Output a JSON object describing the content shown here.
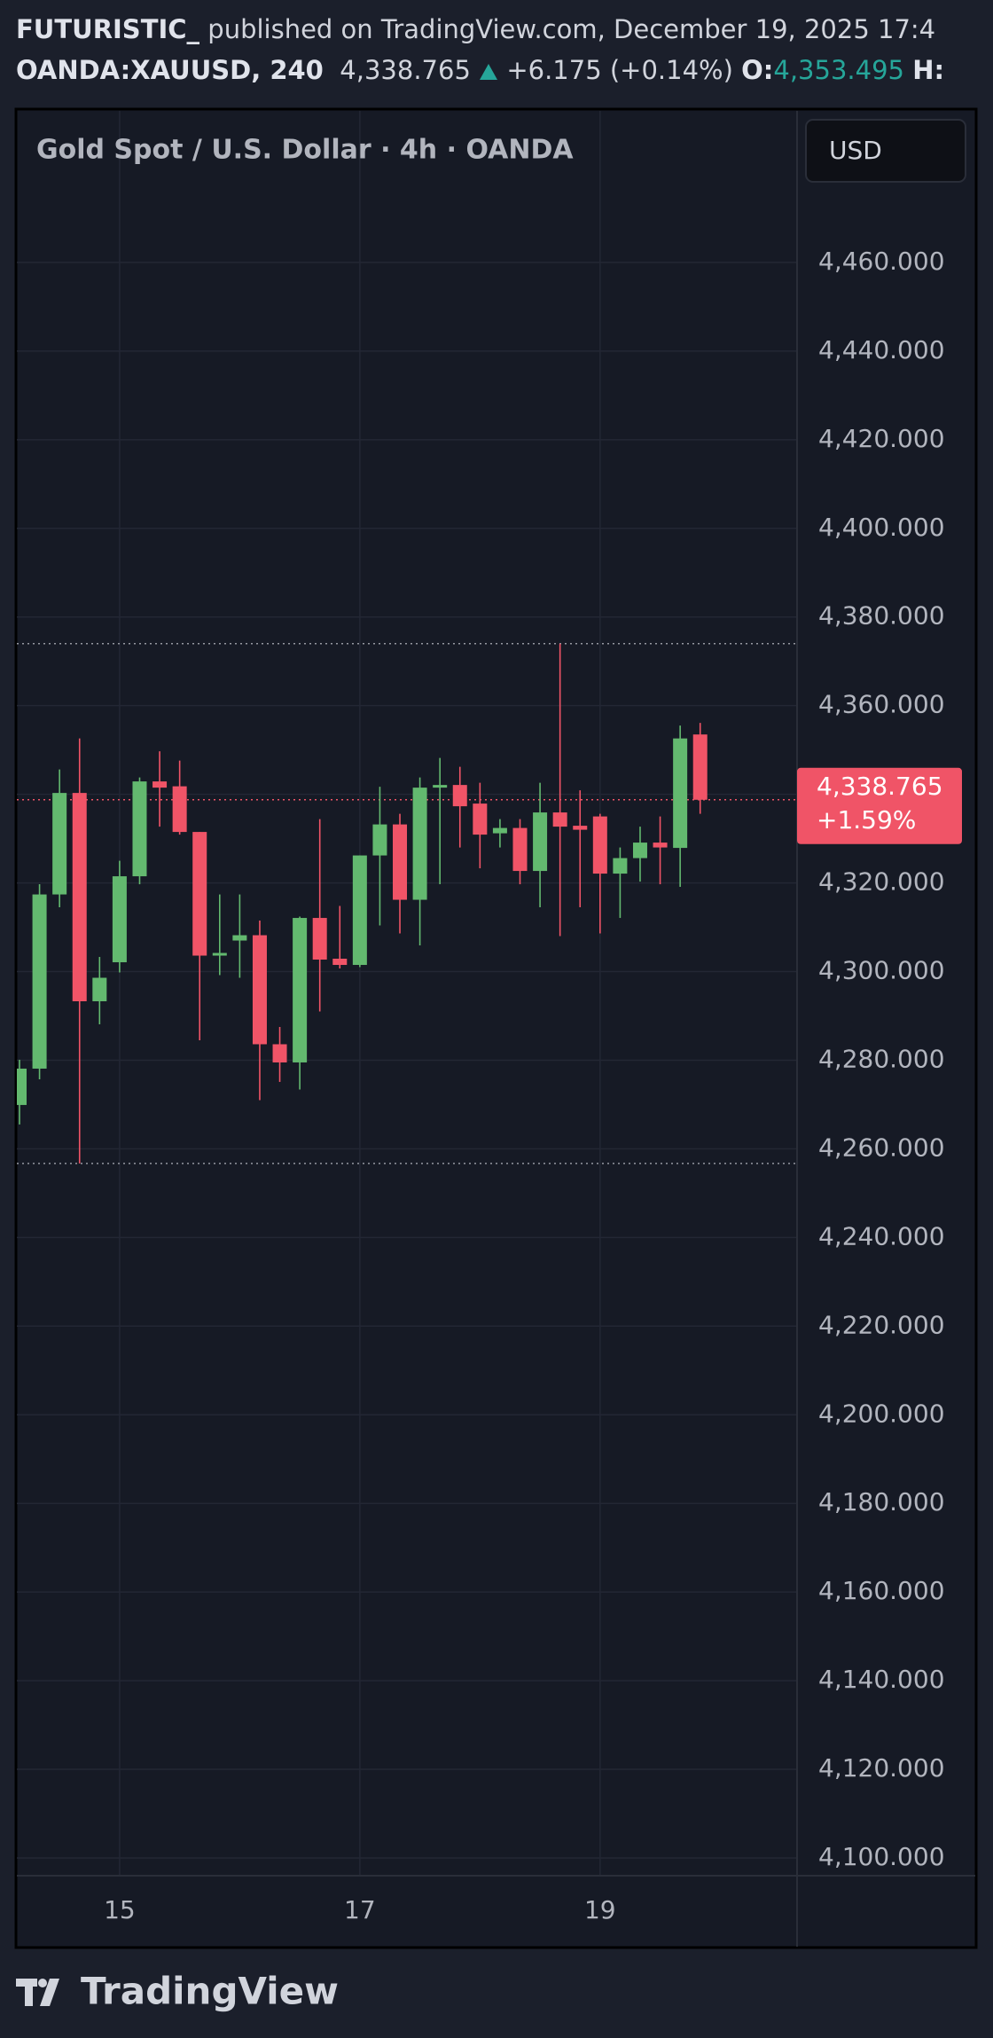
{
  "header": {
    "author": "FUTURISTIC_",
    "published": "published on TradingView.com, December 19, 2025 17:4",
    "symbol": "OANDA:XAUUSD, 240",
    "last": "4,338.765",
    "change": "+6.175 (+0.14%)",
    "open_label": "O:",
    "open_value": "4,353.495",
    "high_label": "H:"
  },
  "currency_button": "USD",
  "price_tag": {
    "price": "4,338.765",
    "percent": "+1.59%"
  },
  "footer": "TradingView",
  "chart_data": {
    "type": "candlestick",
    "title": "Gold Spot / U.S. Dollar · 4h · OANDA",
    "categories": [
      null,
      null,
      null,
      null,
      null,
      "15",
      null,
      null,
      null,
      null,
      null,
      null,
      null,
      null,
      null,
      null,
      null,
      "17",
      null,
      null,
      null,
      null,
      null,
      null,
      null,
      null,
      null,
      null,
      null,
      "19",
      null,
      null,
      null,
      null,
      null
    ],
    "open": [
      4269.9,
      4278.1,
      4317.4,
      4340.3,
      4293.3,
      4302.1,
      4321.5,
      4342.9,
      4341.8,
      4331.5,
      4303.6,
      4307.0,
      4308.2,
      4283.6,
      4279.5,
      4312.1,
      4302.9,
      4301.5,
      4326.2,
      4333.2,
      4316.2,
      4341.5,
      4342.1,
      4337.9,
      4331.2,
      4332.4,
      4322.7,
      4335.9,
      4332.9,
      4335.0,
      4322.1,
      4325.6,
      4329.1,
      4327.9,
      4353.495
    ],
    "high": [
      4280.1,
      4319.7,
      4345.6,
      4352.6,
      4303.3,
      4325.0,
      4343.8,
      4349.7,
      4347.6,
      4331.5,
      4317.4,
      4317.4,
      4311.5,
      4287.5,
      4312.4,
      4334.4,
      4314.8,
      4326.2,
      4341.7,
      4335.6,
      4343.8,
      4348.2,
      4346.2,
      4342.6,
      4334.4,
      4334.4,
      4342.6,
      4374.0,
      4340.9,
      4335.6,
      4328.0,
      4332.7,
      4335.0,
      4355.5,
      4356.1
    ],
    "low": [
      4265.5,
      4275.7,
      4314.5,
      4256.7,
      4288.1,
      4299.8,
      4319.7,
      4332.7,
      4330.9,
      4284.5,
      4299.2,
      4298.6,
      4271.0,
      4275.1,
      4273.4,
      4291.0,
      4300.7,
      4301.0,
      4310.4,
      4308.6,
      4305.9,
      4319.7,
      4328.0,
      4323.3,
      4328.0,
      4319.7,
      4314.5,
      4308.0,
      4314.5,
      4308.6,
      4312.1,
      4320.3,
      4319.7,
      4319.1,
      4335.6
    ],
    "close": [
      4278.1,
      4317.4,
      4340.3,
      4293.3,
      4298.6,
      4321.5,
      4342.9,
      4341.5,
      4331.5,
      4303.6,
      4304.2,
      4308.2,
      4283.6,
      4279.5,
      4312.1,
      4302.7,
      4301.5,
      4326.2,
      4333.2,
      4316.2,
      4341.5,
      4342.1,
      4337.3,
      4330.9,
      4332.4,
      4322.7,
      4335.9,
      4332.7,
      4332.0,
      4322.1,
      4325.6,
      4329.1,
      4328.0,
      4352.6,
      4338.765
    ],
    "up_color": "#63b96f",
    "down_color": "#f05467",
    "grid": true,
    "ylim": [
      4096,
      4494.2
    ],
    "yticks": [
      {
        "value": 4100,
        "label": "4,100.000"
      },
      {
        "value": 4120,
        "label": "4,120.000"
      },
      {
        "value": 4140,
        "label": "4,140.000"
      },
      {
        "value": 4160,
        "label": "4,160.000"
      },
      {
        "value": 4180,
        "label": "4,180.000"
      },
      {
        "value": 4200,
        "label": "4,200.000"
      },
      {
        "value": 4220,
        "label": "4,220.000"
      },
      {
        "value": 4240,
        "label": "4,240.000"
      },
      {
        "value": 4260,
        "label": "4,260.000"
      },
      {
        "value": 4280,
        "label": "4,280.000"
      },
      {
        "value": 4300,
        "label": "4,300.000"
      },
      {
        "value": 4320,
        "label": "4,320.000"
      },
      {
        "value": 4340,
        "label": "4,340.000"
      },
      {
        "value": 4360,
        "label": "4,360.000"
      },
      {
        "value": 4380,
        "label": "4,380.000"
      },
      {
        "value": 4400,
        "label": "4,400.000"
      },
      {
        "value": 4420,
        "label": "4,420.000"
      },
      {
        "value": 4440,
        "label": "4,440.000"
      },
      {
        "value": 4460,
        "label": "4,460.000"
      }
    ]
  }
}
